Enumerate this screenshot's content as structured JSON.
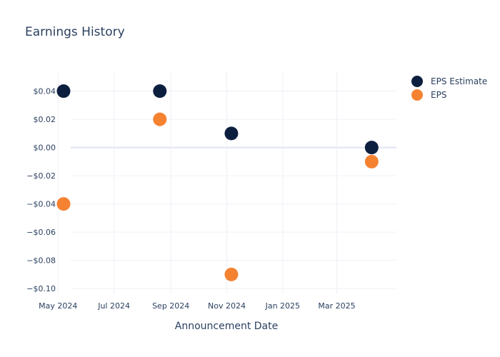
{
  "chart_data": {
    "type": "scatter",
    "title": "Earnings History",
    "xlabel": "Announcement Date",
    "ylabel": "",
    "x_ticks": [
      {
        "date": "2024-05-01",
        "label": "May 2024"
      },
      {
        "date": "2024-07-01",
        "label": "Jul 2024"
      },
      {
        "date": "2024-09-01",
        "label": "Sep 2024"
      },
      {
        "date": "2024-11-01",
        "label": "Nov 2024"
      },
      {
        "date": "2025-01-01",
        "label": "Jan 2025"
      },
      {
        "date": "2025-03-01",
        "label": "Mar 2025"
      }
    ],
    "xlim": [
      "2024-04-30",
      "2025-05-05"
    ],
    "y_ticks": [
      {
        "value": 0.04,
        "label": "$0.04"
      },
      {
        "value": 0.02,
        "label": "$0.02"
      },
      {
        "value": 0.0,
        "label": "$0.00"
      },
      {
        "value": -0.02,
        "label": "−$0.02"
      },
      {
        "value": -0.04,
        "label": "−$0.04"
      },
      {
        "value": -0.06,
        "label": "−$0.06"
      },
      {
        "value": -0.08,
        "label": "−$0.08"
      },
      {
        "value": -0.1,
        "label": "−$0.10"
      }
    ],
    "ylim": [
      -0.104,
      0.054
    ],
    "legend_position": "top-right",
    "series": [
      {
        "name": "EPS Estimate",
        "color": "#0d1f3f",
        "points": [
          {
            "x": "2024-05-07",
            "y": 0.04
          },
          {
            "x": "2024-08-20",
            "y": 0.04
          },
          {
            "x": "2024-11-06",
            "y": 0.01
          },
          {
            "x": "2025-04-08",
            "y": 0.0
          }
        ]
      },
      {
        "name": "EPS",
        "color": "#f58231",
        "points": [
          {
            "x": "2024-05-07",
            "y": -0.04
          },
          {
            "x": "2024-08-20",
            "y": 0.02
          },
          {
            "x": "2024-11-06",
            "y": -0.09
          },
          {
            "x": "2025-04-08",
            "y": -0.01
          }
        ]
      }
    ]
  }
}
